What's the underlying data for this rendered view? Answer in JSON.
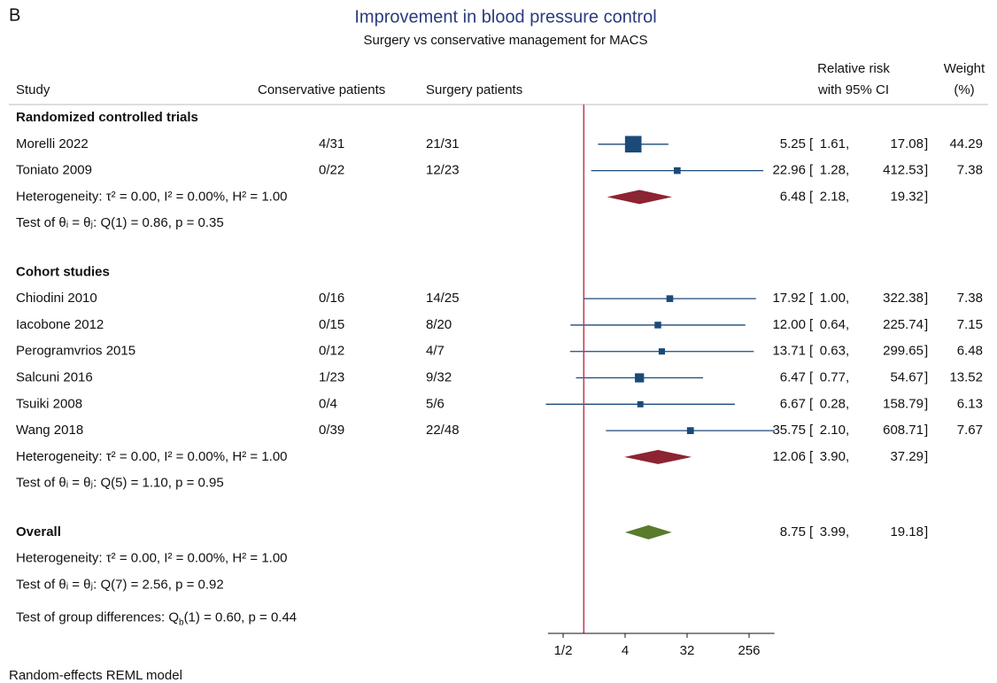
{
  "chart_data": {
    "type": "forest",
    "panel_label": "B",
    "title": "Improvement in blood pressure control",
    "subtitle": "Surgery vs conservative management for MACS",
    "columns": {
      "study": "Study",
      "conservative": "Conservative patients",
      "surgery": "Surgery patients",
      "effect_1": "Relative risk",
      "effect_2": "with 95% CI",
      "weight_1": "Weight",
      "weight_2": "(%)"
    },
    "xscale": "log",
    "xlim": [
      0.3,
      600
    ],
    "xticks": [
      {
        "value": 0.5,
        "label": "1/2"
      },
      4,
      32,
      256
    ],
    "reference": 1,
    "square_color": "#1b4a78",
    "group_diamond_color": "#8c2431",
    "overall_diamond_color": "#5a7a2c",
    "reference_color": "#c33552",
    "groups": [
      {
        "name": "Randomized controlled trials",
        "studies": [
          {
            "name": "Morelli 2022",
            "conservative": "4/31",
            "surgery": "21/31",
            "rr": 5.25,
            "lo": 1.61,
            "hi": 17.08,
            "weight": 44.29
          },
          {
            "name": "Toniato 2009",
            "conservative": "0/22",
            "surgery": "12/23",
            "rr": 22.96,
            "lo": 1.28,
            "hi": 412.53,
            "weight": 7.38
          }
        ],
        "pooled": {
          "rr": 6.48,
          "lo": 2.18,
          "hi": 19.32
        },
        "heterogeneity": "Heterogeneity: τ² = 0.00, I² = 0.00%, H² = 1.00",
        "test": "Test of θᵢ = θⱼ: Q(1) = 0.86, p = 0.35"
      },
      {
        "name": "Cohort studies",
        "studies": [
          {
            "name": "Chiodini 2010",
            "conservative": "0/16",
            "surgery": "14/25",
            "rr": 17.92,
            "lo": {
              "value": 1,
              "label": "1.00"
            },
            "hi": 322.38,
            "weight": 7.38
          },
          {
            "name": "Iacobone 2012",
            "conservative": "0/15",
            "surgery": "8/20",
            "rr": {
              "value": 12,
              "label": "12.00"
            },
            "lo": 0.64,
            "hi": 225.74,
            "weight": 7.15
          },
          {
            "name": "Perogramvrios 2015",
            "conservative": "0/12",
            "surgery": "4/7",
            "rr": 13.71,
            "lo": 0.63,
            "hi": 299.65,
            "weight": 6.48
          },
          {
            "name": "Salcuni 2016",
            "conservative": "1/23",
            "surgery": "9/32",
            "rr": 6.47,
            "lo": 0.77,
            "hi": 54.67,
            "weight": 13.52
          },
          {
            "name": "Tsuiki 2008",
            "conservative": "0/4",
            "surgery": "5/6",
            "rr": 6.67,
            "lo": 0.28,
            "hi": 158.79,
            "weight": 6.13
          },
          {
            "name": "Wang 2018",
            "conservative": "0/39",
            "surgery": "22/48",
            "rr": 35.75,
            "lo": {
              "value": 2.1,
              "label": "2.10"
            },
            "hi": 608.71,
            "weight": 7.67
          }
        ],
        "pooled": {
          "rr": 12.06,
          "lo": {
            "value": 3.9,
            "label": "3.90"
          },
          "hi": 37.29
        },
        "heterogeneity": "Heterogeneity: τ² = 0.00, I² = 0.00%, H² = 1.00",
        "test": "Test of θᵢ = θⱼ: Q(5) = 1.10, p = 0.95"
      }
    ],
    "overall": {
      "name": "Overall",
      "rr": 8.75,
      "lo": 3.99,
      "hi": 19.18,
      "heterogeneity": "Heterogeneity: τ² = 0.00, I² = 0.00%, H² = 1.00",
      "test": "Test of θᵢ = θⱼ: Q(7) = 2.56, p = 0.92"
    },
    "group_test": {
      "pre": "Test of group differences: Q",
      "sub": "b",
      "post": "(1) = 0.60, p = 0.44"
    },
    "footer": "Random-effects REML model"
  }
}
